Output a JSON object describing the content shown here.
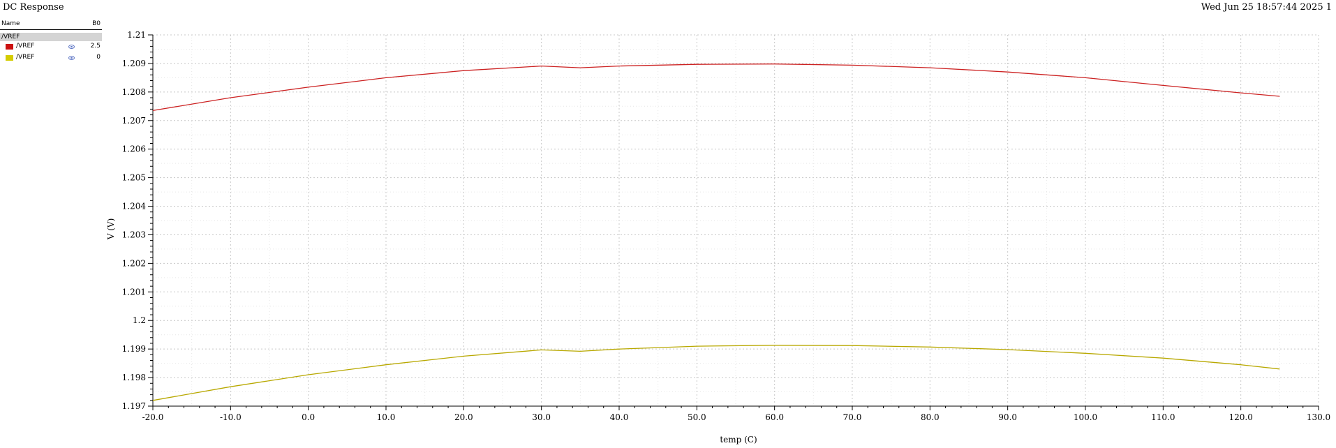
{
  "window": {
    "title": "DC Response",
    "datestamp": "Wed Jun 25 18:57:44 2025  1"
  },
  "legend": {
    "name_header": "Name",
    "value_header": "B0",
    "group": "/VREF",
    "items": [
      {
        "label": "/VREF",
        "color": "#cc1111",
        "value": "2.5",
        "icon": "eye-icon"
      },
      {
        "label": "/VREF",
        "color": "#d4cc00",
        "value": "0",
        "icon": "eye-icon"
      }
    ]
  },
  "chart_data": {
    "type": "line",
    "xlabel": "temp (C)",
    "ylabel": "V (V)",
    "xlim": [
      -20,
      130
    ],
    "ylim": [
      1.197,
      1.21
    ],
    "x_ticks": [
      "-20.0",
      "-10.0",
      "0.0",
      "10.0",
      "20.0",
      "30.0",
      "40.0",
      "50.0",
      "60.0",
      "70.0",
      "80.0",
      "90.0",
      "100.0",
      "110.0",
      "120.0",
      "130.0"
    ],
    "y_ticks": [
      "1.197",
      "1.198",
      "1.199",
      "1.2",
      "1.201",
      "1.202",
      "1.203",
      "1.204",
      "1.205",
      "1.206",
      "1.207",
      "1.208",
      "1.209",
      "1.21"
    ],
    "grid": true,
    "series": [
      {
        "name": "/VREF",
        "color": "#cc2222",
        "x": [
          -20,
          -10,
          0,
          10,
          20,
          30,
          35,
          40,
          50,
          60,
          70,
          80,
          90,
          100,
          110,
          120,
          125
        ],
        "y": [
          1.20735,
          1.2078,
          1.20817,
          1.2085,
          1.20875,
          1.20891,
          1.20885,
          1.20891,
          1.20897,
          1.20898,
          1.20894,
          1.20885,
          1.2087,
          1.2085,
          1.20823,
          1.20797,
          1.20785
        ]
      },
      {
        "name": "/VREF",
        "color": "#b8a800",
        "x": [
          -20,
          -10,
          0,
          10,
          20,
          30,
          35,
          40,
          50,
          60,
          70,
          80,
          90,
          100,
          110,
          120,
          125
        ],
        "y": [
          1.1972,
          1.19768,
          1.1981,
          1.19845,
          1.19875,
          1.19897,
          1.19892,
          1.199,
          1.1991,
          1.19913,
          1.19912,
          1.19907,
          1.19898,
          1.19885,
          1.19868,
          1.19845,
          1.1983
        ]
      }
    ]
  }
}
